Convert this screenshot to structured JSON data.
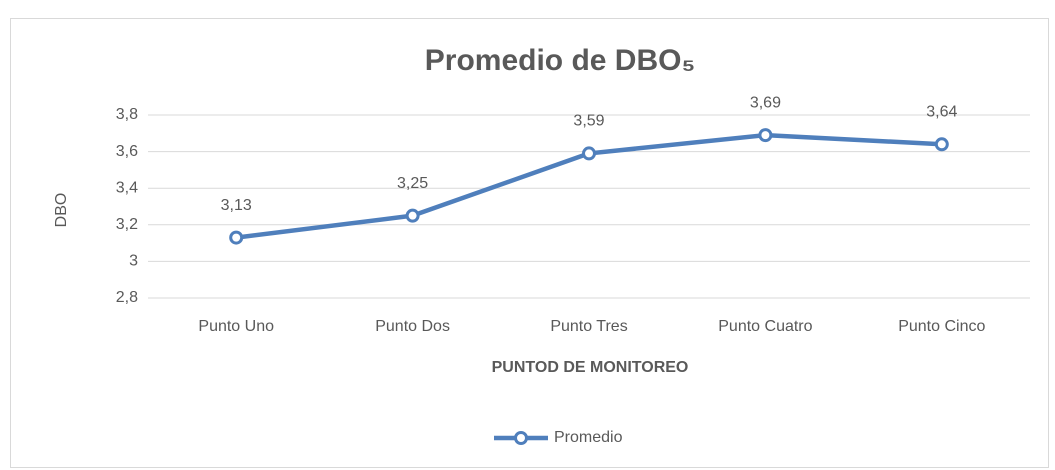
{
  "chart_data": {
    "type": "line",
    "title": "Promedio de DBO₅",
    "x_label": "PUNTOD DE MONITOREO",
    "y_label": "DBO",
    "categories": [
      "Punto Uno",
      "Punto Dos",
      "Punto Tres",
      "Punto Cuatro",
      "Punto Cinco"
    ],
    "series": [
      {
        "name": "Promedio",
        "color": "#4f7fbc",
        "values": [
          3.13,
          3.25,
          3.59,
          3.69,
          3.64
        ],
        "value_labels": [
          "3,13",
          "3,25",
          "3,59",
          "3,69",
          "3,64"
        ]
      }
    ],
    "ylim": [
      2.8,
      3.8
    ],
    "yticks": [
      {
        "value": 2.8,
        "label": "2,8"
      },
      3,
      {
        "value": 3.2,
        "label": "3,2"
      },
      {
        "value": 3.4,
        "label": "3,4"
      },
      {
        "value": 3.6,
        "label": "3,6"
      },
      {
        "value": 3.8,
        "label": "3,8"
      }
    ],
    "grid": true,
    "legend": "bottom"
  }
}
